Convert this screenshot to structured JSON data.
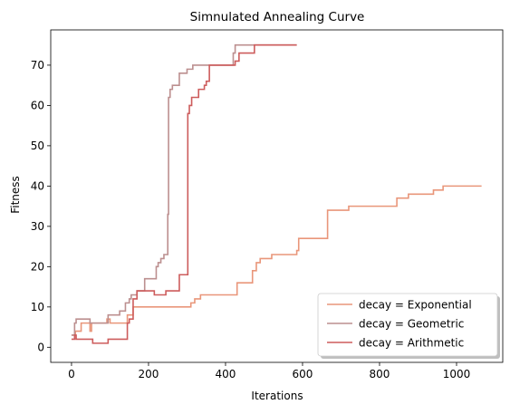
{
  "chart_data": {
    "type": "line",
    "title": "Simnulated Annealing Curve",
    "xlabel": "Iterations",
    "ylabel": "Fitness",
    "xlim": [
      -54,
      1120
    ],
    "ylim": [
      -3.75,
      78.75
    ],
    "xticks": [
      0,
      200,
      400,
      600,
      800,
      1000
    ],
    "yticks": [
      0,
      10,
      20,
      30,
      40,
      50,
      60,
      70
    ],
    "grid": false,
    "legend_position": "lower-right",
    "series": [
      {
        "name": "decay = Exponential",
        "color": "#E9967A",
        "points": [
          [
            0,
            3
          ],
          [
            10,
            3
          ],
          [
            10,
            4
          ],
          [
            25,
            4
          ],
          [
            25,
            6
          ],
          [
            48,
            6
          ],
          [
            48,
            4
          ],
          [
            52,
            4
          ],
          [
            52,
            6
          ],
          [
            92,
            6
          ],
          [
            92,
            7
          ],
          [
            100,
            7
          ],
          [
            100,
            6
          ],
          [
            145,
            6
          ],
          [
            145,
            8
          ],
          [
            160,
            8
          ],
          [
            160,
            10
          ],
          [
            310,
            10
          ],
          [
            310,
            11
          ],
          [
            320,
            11
          ],
          [
            320,
            12
          ],
          [
            335,
            12
          ],
          [
            335,
            13
          ],
          [
            430,
            13
          ],
          [
            430,
            16
          ],
          [
            470,
            16
          ],
          [
            470,
            19
          ],
          [
            480,
            19
          ],
          [
            480,
            21
          ],
          [
            490,
            21
          ],
          [
            490,
            22
          ],
          [
            520,
            22
          ],
          [
            520,
            23
          ],
          [
            585,
            23
          ],
          [
            585,
            24
          ],
          [
            590,
            24
          ],
          [
            590,
            27
          ],
          [
            665,
            27
          ],
          [
            665,
            34
          ],
          [
            720,
            34
          ],
          [
            720,
            35
          ],
          [
            845,
            35
          ],
          [
            845,
            37
          ],
          [
            875,
            37
          ],
          [
            875,
            38
          ],
          [
            940,
            38
          ],
          [
            940,
            39
          ],
          [
            965,
            39
          ],
          [
            965,
            40
          ],
          [
            1065,
            40
          ]
        ]
      },
      {
        "name": "decay = Geometric",
        "color": "#BC8F8F",
        "points": [
          [
            0,
            3
          ],
          [
            8,
            3
          ],
          [
            8,
            6
          ],
          [
            12,
            6
          ],
          [
            12,
            7
          ],
          [
            48,
            7
          ],
          [
            48,
            6
          ],
          [
            95,
            6
          ],
          [
            95,
            8
          ],
          [
            125,
            8
          ],
          [
            125,
            9
          ],
          [
            140,
            9
          ],
          [
            140,
            11
          ],
          [
            150,
            11
          ],
          [
            150,
            12
          ],
          [
            155,
            12
          ],
          [
            155,
            13
          ],
          [
            170,
            13
          ],
          [
            170,
            14
          ],
          [
            190,
            14
          ],
          [
            190,
            17
          ],
          [
            220,
            17
          ],
          [
            220,
            20
          ],
          [
            225,
            20
          ],
          [
            225,
            21
          ],
          [
            232,
            21
          ],
          [
            232,
            22
          ],
          [
            240,
            22
          ],
          [
            240,
            23
          ],
          [
            250,
            23
          ],
          [
            250,
            33
          ],
          [
            252,
            33
          ],
          [
            252,
            62
          ],
          [
            256,
            62
          ],
          [
            256,
            64
          ],
          [
            262,
            64
          ],
          [
            262,
            65
          ],
          [
            280,
            65
          ],
          [
            280,
            68
          ],
          [
            300,
            68
          ],
          [
            300,
            69
          ],
          [
            315,
            69
          ],
          [
            315,
            70
          ],
          [
            420,
            70
          ],
          [
            420,
            73
          ],
          [
            425,
            73
          ],
          [
            425,
            75
          ],
          [
            585,
            75
          ]
        ]
      },
      {
        "name": "decay = Arithmetic",
        "color": "#CD5C5C",
        "points": [
          [
            0,
            2
          ],
          [
            8,
            2
          ],
          [
            8,
            3
          ],
          [
            12,
            3
          ],
          [
            12,
            2
          ],
          [
            55,
            2
          ],
          [
            55,
            1
          ],
          [
            95,
            1
          ],
          [
            95,
            2
          ],
          [
            145,
            2
          ],
          [
            145,
            6
          ],
          [
            150,
            6
          ],
          [
            150,
            7
          ],
          [
            160,
            7
          ],
          [
            160,
            12
          ],
          [
            170,
            12
          ],
          [
            170,
            14
          ],
          [
            215,
            14
          ],
          [
            215,
            13
          ],
          [
            245,
            13
          ],
          [
            245,
            14
          ],
          [
            280,
            14
          ],
          [
            280,
            18
          ],
          [
            302,
            18
          ],
          [
            302,
            58
          ],
          [
            306,
            58
          ],
          [
            306,
            60
          ],
          [
            312,
            60
          ],
          [
            312,
            62
          ],
          [
            330,
            62
          ],
          [
            330,
            64
          ],
          [
            345,
            64
          ],
          [
            345,
            65
          ],
          [
            350,
            65
          ],
          [
            350,
            66
          ],
          [
            358,
            66
          ],
          [
            358,
            70
          ],
          [
            425,
            70
          ],
          [
            425,
            71
          ],
          [
            435,
            71
          ],
          [
            435,
            73
          ],
          [
            475,
            73
          ],
          [
            475,
            75
          ],
          [
            585,
            75
          ]
        ]
      }
    ]
  }
}
